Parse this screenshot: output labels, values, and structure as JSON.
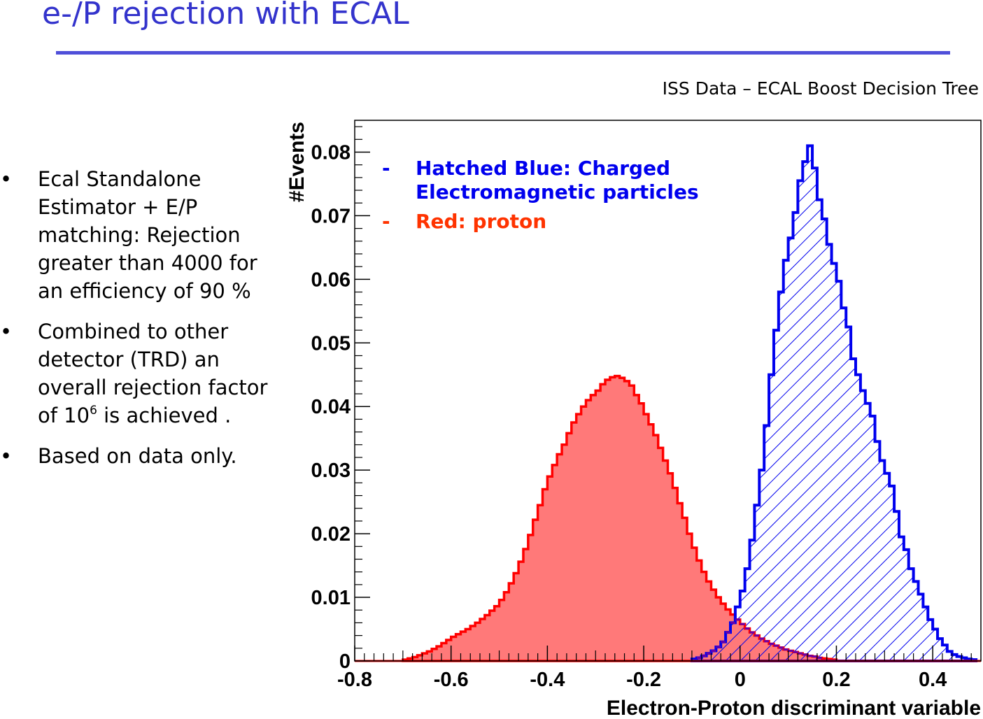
{
  "slide": {
    "title": "e-/P rejection with ECAL",
    "subtitle": "ISS Data – ECAL Boost Decision Tree",
    "bullets": [
      {
        "text": "Ecal Standalone Estimator + E/P matching: Rejection greater than 4000 for an efficiency of 90 %"
      },
      {
        "pre": "Combined to other detector (TRD) an overall rejection factor of 10",
        "sup": "6",
        "post": " is achieved ."
      },
      {
        "text": "Based on data only."
      }
    ]
  },
  "colors": {
    "title": "#3333cc",
    "electron": "#0000ee",
    "proton": "#ff0000",
    "proton_fill": "#ff8080",
    "overlap": "#6a00a8"
  },
  "chart_data": {
    "type": "histogram",
    "xlabel": "Electron-Proton discriminant variable",
    "ylabel": "#Events",
    "xlim": [
      -0.8,
      0.5
    ],
    "ylim": [
      0,
      0.085
    ],
    "xticks": [
      "-0.8",
      "-0.6",
      "-0.4",
      "-0.2",
      "0",
      "0.2",
      "0.4"
    ],
    "yticks": [
      "0",
      "0.01",
      "0.02",
      "0.03",
      "0.04",
      "0.05",
      "0.06",
      "0.07",
      "0.08"
    ],
    "bin_width": 0.01,
    "legend": [
      {
        "dash": "-",
        "lines": [
          "Hatched Blue: Charged",
          "Electromagnetic particles"
        ],
        "color": "#0000ee"
      },
      {
        "dash": "-",
        "lines": [
          "Red: proton"
        ],
        "color": "#ff3300"
      }
    ],
    "series": [
      {
        "name": "Hatched Blue: Charged Electromagnetic particles",
        "color": "#0000ee",
        "style": "hatched",
        "x_start": -0.1,
        "values": [
          0.0003,
          0.0005,
          0.0008,
          0.0012,
          0.0016,
          0.0022,
          0.003,
          0.0045,
          0.006,
          0.0085,
          0.011,
          0.0145,
          0.019,
          0.0245,
          0.03,
          0.037,
          0.045,
          0.052,
          0.058,
          0.063,
          0.0665,
          0.0705,
          0.0755,
          0.0785,
          0.081,
          0.0775,
          0.0725,
          0.0695,
          0.0655,
          0.0625,
          0.0597,
          0.0555,
          0.0525,
          0.0475,
          0.045,
          0.0425,
          0.0405,
          0.0385,
          0.0345,
          0.0315,
          0.0295,
          0.0275,
          0.0235,
          0.0195,
          0.0175,
          0.0145,
          0.0125,
          0.0105,
          0.0085,
          0.0065,
          0.005,
          0.0035,
          0.0025,
          0.0015,
          0.001,
          0.0007,
          0.0005,
          0.0003,
          0.0002
        ]
      },
      {
        "name": "Red: proton",
        "color": "#ff0000",
        "style": "filled",
        "x_start": -0.7,
        "values": [
          0.0002,
          0.0004,
          0.0006,
          0.0009,
          0.0012,
          0.0015,
          0.0019,
          0.0023,
          0.0028,
          0.0033,
          0.0038,
          0.0042,
          0.0046,
          0.005,
          0.0055,
          0.006,
          0.0066,
          0.0072,
          0.0079,
          0.0086,
          0.0096,
          0.0108,
          0.0122,
          0.0138,
          0.0156,
          0.0176,
          0.0198,
          0.0222,
          0.0245,
          0.027,
          0.029,
          0.0308,
          0.0325,
          0.034,
          0.0358,
          0.0375,
          0.0388,
          0.04,
          0.041,
          0.0418,
          0.0425,
          0.0435,
          0.0442,
          0.0446,
          0.0448,
          0.0445,
          0.044,
          0.0433,
          0.0418,
          0.0405,
          0.0388,
          0.0372,
          0.0355,
          0.0335,
          0.0315,
          0.0295,
          0.0272,
          0.0248,
          0.0225,
          0.02,
          0.0178,
          0.0158,
          0.014,
          0.0125,
          0.0112,
          0.01,
          0.009,
          0.0081,
          0.0073,
          0.0065,
          0.0058,
          0.0051,
          0.0045,
          0.004,
          0.0035,
          0.0031,
          0.0027,
          0.0024,
          0.0021,
          0.0018,
          0.0016,
          0.0014,
          0.0012,
          0.001,
          0.0008,
          0.0007,
          0.0005,
          0.0004,
          0.0003,
          0.0002
        ]
      }
    ]
  }
}
